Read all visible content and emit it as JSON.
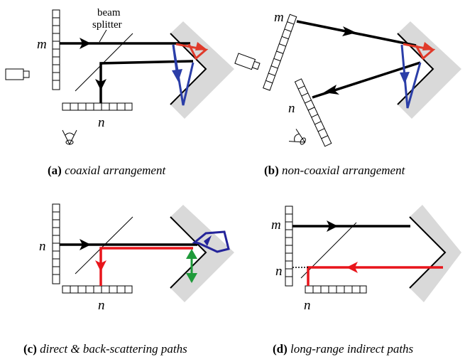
{
  "colors": {
    "black": "#000000",
    "red": "#e03a2a",
    "blue": "#2b3ea8",
    "green": "#1f9a3a",
    "bright_red": "#e8151b",
    "navy": "#24249a",
    "mirror_gray": "#d9d9d9"
  },
  "panels": [
    {
      "id": "a",
      "caption_tag": "(a)",
      "caption_text": "coaxial arrangement",
      "sensor_top_label": "m",
      "sensor_bottom_label": "n",
      "splitter_label_line1": "beam",
      "splitter_label_line2": "splitter"
    },
    {
      "id": "b",
      "caption_tag": "(b)",
      "caption_text": "non-coaxial arrangement",
      "sensor_top_label": "m",
      "sensor_bottom_label": "n"
    },
    {
      "id": "c",
      "caption_tag": "(c)",
      "caption_text": "direct & back-scattering paths",
      "sensor_top_label": "n",
      "sensor_bottom_label": "n"
    },
    {
      "id": "d",
      "caption_tag": "(d)",
      "caption_text": "long-range indirect paths",
      "sensor_top_label": "m",
      "sensor_side_label": "n",
      "sensor_bottom_label": "n"
    }
  ]
}
